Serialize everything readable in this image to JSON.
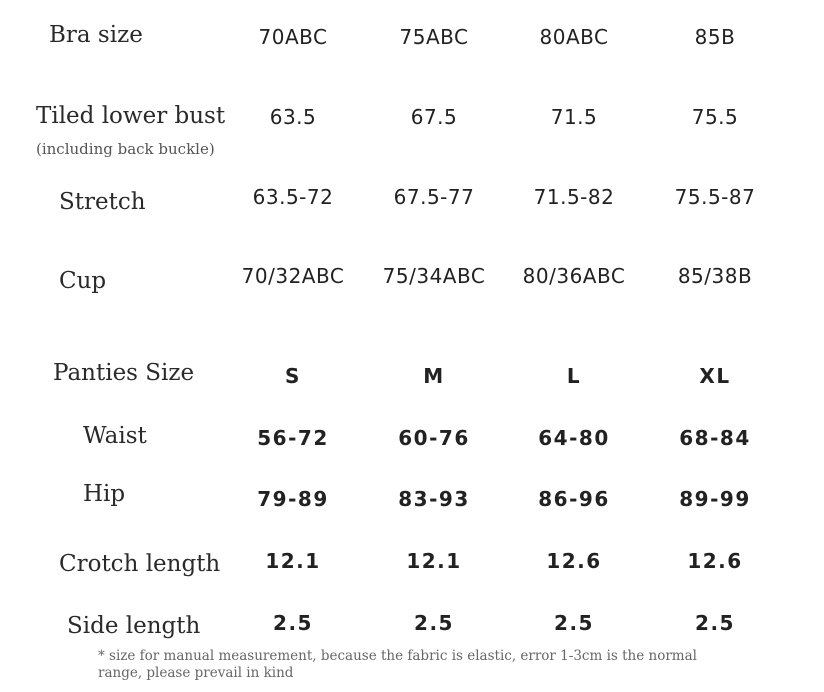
{
  "bra": {
    "header": {
      "label": "Bra size",
      "values": [
        "70ABC",
        "75ABC",
        "80ABC",
        "85B"
      ]
    },
    "lower_bust": {
      "label": "Tiled lower bust",
      "sublabel": "(including back buckle)",
      "values": [
        "63.5",
        "67.5",
        "71.5",
        "75.5"
      ]
    },
    "stretch": {
      "label": "Stretch",
      "values": [
        "63.5-72",
        "67.5-77",
        "71.5-82",
        "75.5-87"
      ]
    },
    "cup": {
      "label": "Cup",
      "values": [
        "70/32ABC",
        "75/34ABC",
        "80/36ABC",
        "85/38B"
      ]
    }
  },
  "panties": {
    "header": {
      "label": "Panties Size",
      "values": [
        "S",
        "M",
        "L",
        "XL"
      ]
    },
    "waist": {
      "label": "Waist",
      "values": [
        "56-72",
        "60-76",
        "64-80",
        "68-84"
      ]
    },
    "hip": {
      "label": "Hip",
      "values": [
        "79-89",
        "83-93",
        "86-96",
        "89-99"
      ]
    },
    "crotch": {
      "label": "Crotch length",
      "values": [
        "12.1",
        "12.1",
        "12.6",
        "12.6"
      ]
    },
    "side": {
      "label": "Side length",
      "values": [
        "2.5",
        "2.5",
        "2.5",
        "2.5"
      ]
    }
  },
  "note": "* size for manual measurement, because the fabric is elastic, error 1-3cm is the normal range, please prevail in kind"
}
